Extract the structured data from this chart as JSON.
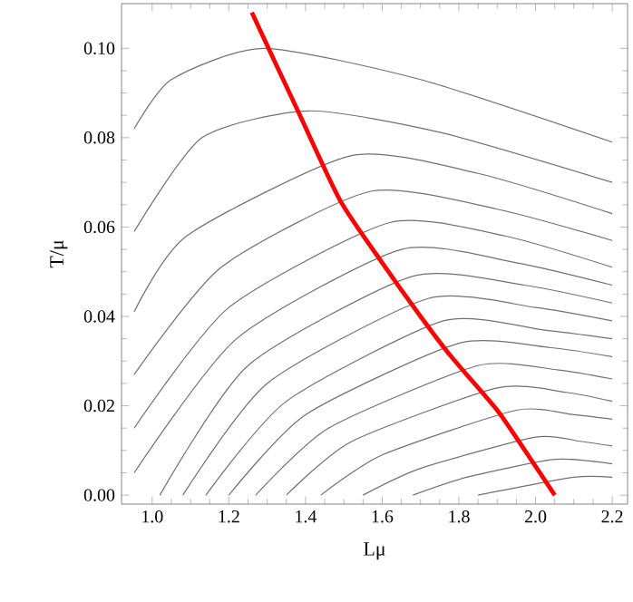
{
  "chart_data": {
    "type": "line",
    "xlabel": "Lμ",
    "ylabel": "T/μ",
    "xlim": [
      0.92,
      2.24
    ],
    "ylim": [
      -0.002,
      0.11
    ],
    "xticks": [
      {
        "value": 1.0,
        "label": "1.0"
      },
      {
        "value": 1.2,
        "label": "1.2"
      },
      {
        "value": 1.4,
        "label": "1.4"
      },
      {
        "value": 1.6,
        "label": "1.6"
      },
      {
        "value": 1.8,
        "label": "1.8"
      },
      {
        "value": 2.0,
        "label": "2.0"
      },
      {
        "value": 2.2,
        "label": "2.2"
      }
    ],
    "yticks": [
      {
        "value": 0.0,
        "label": "0.00"
      },
      {
        "value": 0.02,
        "label": "0.02"
      },
      {
        "value": 0.04,
        "label": "0.04"
      },
      {
        "value": 0.06,
        "label": "0.06"
      },
      {
        "value": 0.08,
        "label": "0.08"
      },
      {
        "value": 0.1,
        "label": "0.10"
      }
    ],
    "grid": false,
    "marker": "none",
    "series": [
      {
        "color": "#707070",
        "x": [
          0.953,
          1.05,
          1.29,
          1.7,
          2.2
        ],
        "values": [
          0.082,
          0.093,
          0.1,
          0.093,
          0.079
        ]
      },
      {
        "color": "#707070",
        "x": [
          0.953,
          1.13,
          1.41,
          1.76,
          2.2
        ],
        "values": [
          0.059,
          0.08,
          0.086,
          0.081,
          0.07
        ]
      },
      {
        "color": "#707070",
        "x": [
          0.953,
          1.09,
          1.52,
          1.85,
          2.2
        ],
        "values": [
          0.041,
          0.058,
          0.076,
          0.072,
          0.063
        ]
      },
      {
        "color": "#707070",
        "x": [
          0.953,
          1.18,
          1.57,
          1.9,
          2.2
        ],
        "values": [
          0.027,
          0.051,
          0.068,
          0.064,
          0.057
        ]
      },
      {
        "color": "#707070",
        "x": [
          0.953,
          1.2,
          1.62,
          1.92,
          2.2
        ],
        "values": [
          0.015,
          0.042,
          0.061,
          0.058,
          0.051
        ]
      },
      {
        "color": "#707070",
        "x": [
          0.953,
          1.22,
          1.65,
          1.95,
          2.2
        ],
        "values": [
          0.005,
          0.035,
          0.055,
          0.052,
          0.047
        ]
      },
      {
        "color": "#707070",
        "x": [
          1.02,
          1.25,
          1.68,
          1.97,
          2.2
        ],
        "values": [
          0.0,
          0.029,
          0.049,
          0.047,
          0.043
        ]
      },
      {
        "color": "#707070",
        "x": [
          1.08,
          1.3,
          1.72,
          2.0,
          2.2
        ],
        "values": [
          0.0,
          0.025,
          0.044,
          0.042,
          0.039
        ]
      },
      {
        "color": "#707070",
        "x": [
          1.14,
          1.35,
          1.76,
          2.02,
          2.2
        ],
        "values": [
          0.0,
          0.021,
          0.039,
          0.037,
          0.035
        ]
      },
      {
        "color": "#707070",
        "x": [
          1.2,
          1.4,
          1.8,
          2.04,
          2.2
        ],
        "values": [
          0.0,
          0.018,
          0.034,
          0.033,
          0.031
        ]
      },
      {
        "color": "#707070",
        "x": [
          1.27,
          1.46,
          1.85,
          2.06,
          2.2
        ],
        "values": [
          0.0,
          0.015,
          0.029,
          0.028,
          0.026
        ]
      },
      {
        "color": "#707070",
        "x": [
          1.35,
          1.52,
          1.9,
          2.08,
          2.2
        ],
        "values": [
          0.0,
          0.012,
          0.024,
          0.023,
          0.021
        ]
      },
      {
        "color": "#707070",
        "x": [
          1.44,
          1.6,
          1.95,
          2.1,
          2.2
        ],
        "values": [
          0.0,
          0.009,
          0.019,
          0.018,
          0.017
        ]
      },
      {
        "color": "#707070",
        "x": [
          1.55,
          1.7,
          2.0,
          2.12,
          2.2
        ],
        "values": [
          0.0,
          0.006,
          0.013,
          0.012,
          0.011
        ]
      },
      {
        "color": "#707070",
        "x": [
          1.68,
          1.82,
          2.05,
          2.2
        ],
        "values": [
          0.0,
          0.004,
          0.008,
          0.007
        ]
      },
      {
        "color": "#707070",
        "x": [
          1.85,
          2.1,
          2.2
        ],
        "values": [
          0.0,
          0.004,
          0.004
        ]
      },
      {
        "color": "#ff0000",
        "x": [
          1.26,
          1.38,
          1.49,
          1.6,
          1.7,
          1.78,
          1.9,
          1.98,
          2.05
        ],
        "values": [
          0.108,
          0.086,
          0.066,
          0.052,
          0.04,
          0.031,
          0.019,
          0.009,
          0.0
        ]
      }
    ]
  }
}
